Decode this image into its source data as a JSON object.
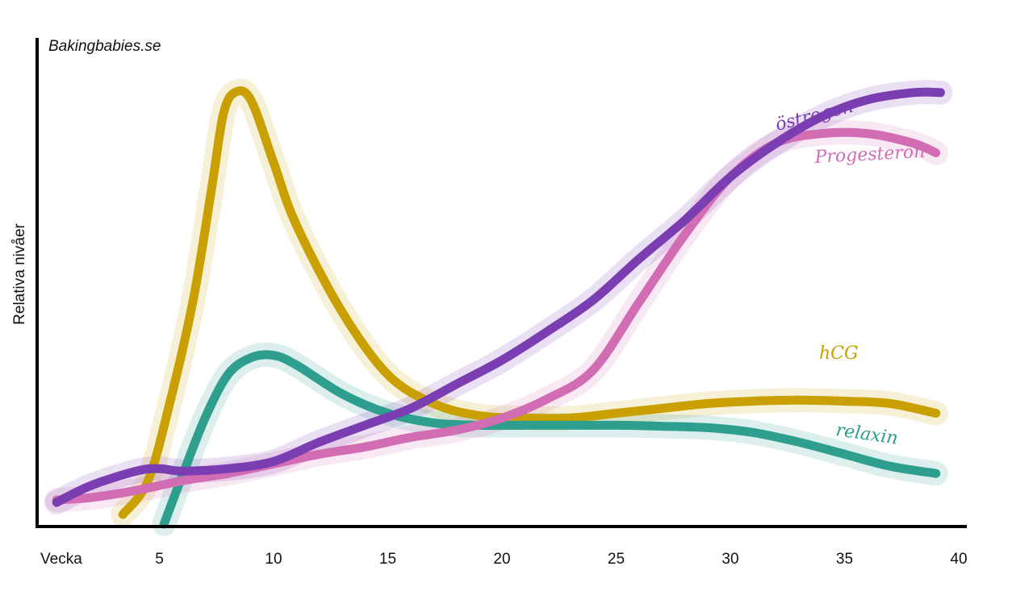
{
  "source": "Bakingbabies.se",
  "chart_data": {
    "type": "line",
    "title": "",
    "ylabel": "Relativa nivåer",
    "xlabel": "Vecka",
    "xlim": [
      0,
      40
    ],
    "ylim": [
      0,
      100
    ],
    "xticks": [
      5,
      10,
      15,
      20,
      25,
      30,
      35,
      40
    ],
    "grid": false,
    "series": [
      {
        "name": "hCG",
        "color": "#C9A000",
        "points": [
          [
            3.4,
            2
          ],
          [
            4.5,
            9
          ],
          [
            5.5,
            26
          ],
          [
            6.5,
            47
          ],
          [
            7.3,
            70
          ],
          [
            7.8,
            85
          ],
          [
            8.3,
            89.5
          ],
          [
            9,
            88
          ],
          [
            10,
            75
          ],
          [
            11,
            62
          ],
          [
            13,
            44
          ],
          [
            15,
            31
          ],
          [
            17,
            25
          ],
          [
            19,
            22.5
          ],
          [
            21,
            22
          ],
          [
            23,
            22
          ],
          [
            25,
            23
          ],
          [
            27,
            24
          ],
          [
            29,
            25
          ],
          [
            31,
            25.5
          ],
          [
            33,
            25.7
          ],
          [
            35,
            25.5
          ],
          [
            37,
            25
          ],
          [
            39,
            23
          ]
        ]
      },
      {
        "name": "relaxin",
        "color": "#2E9E8F",
        "points": [
          [
            5.2,
            0
          ],
          [
            6,
            10
          ],
          [
            7,
            22
          ],
          [
            8,
            31
          ],
          [
            9,
            34.5
          ],
          [
            10,
            35
          ],
          [
            11,
            33
          ],
          [
            13,
            27
          ],
          [
            15,
            23
          ],
          [
            17,
            21
          ],
          [
            19,
            20.5
          ],
          [
            21,
            20.5
          ],
          [
            25,
            20.5
          ],
          [
            27,
            20.3
          ],
          [
            29,
            20
          ],
          [
            31,
            19
          ],
          [
            33,
            17
          ],
          [
            35,
            14.5
          ],
          [
            37,
            12
          ],
          [
            39,
            10.5
          ]
        ]
      },
      {
        "name": "Progesteron",
        "color": "#D26DB4",
        "points": [
          [
            0.5,
            5
          ],
          [
            2,
            5.5
          ],
          [
            4,
            7
          ],
          [
            6,
            9
          ],
          [
            8,
            10.5
          ],
          [
            10,
            12.5
          ],
          [
            12,
            14.5
          ],
          [
            14,
            16
          ],
          [
            16,
            18
          ],
          [
            18,
            19.5
          ],
          [
            20,
            22
          ],
          [
            22,
            26
          ],
          [
            24,
            32
          ],
          [
            26,
            46
          ],
          [
            28,
            60
          ],
          [
            30,
            72
          ],
          [
            32,
            79
          ],
          [
            34,
            81
          ],
          [
            36,
            81
          ],
          [
            38,
            79
          ],
          [
            39,
            77
          ]
        ]
      },
      {
        "name": "östrogen",
        "color": "#7B3DB2",
        "points": [
          [
            0.5,
            4.5
          ],
          [
            2,
            8
          ],
          [
            4,
            11
          ],
          [
            5,
            11.5
          ],
          [
            6,
            11
          ],
          [
            8,
            11.5
          ],
          [
            10,
            13
          ],
          [
            12,
            17
          ],
          [
            14,
            20.5
          ],
          [
            16,
            24
          ],
          [
            18,
            29
          ],
          [
            20,
            34
          ],
          [
            22,
            40
          ],
          [
            24,
            46.5
          ],
          [
            26,
            55
          ],
          [
            28,
            63
          ],
          [
            30,
            72
          ],
          [
            32,
            79
          ],
          [
            34,
            84.5
          ],
          [
            36,
            88
          ],
          [
            38,
            89.5
          ],
          [
            39.2,
            89.5
          ]
        ]
      }
    ]
  }
}
